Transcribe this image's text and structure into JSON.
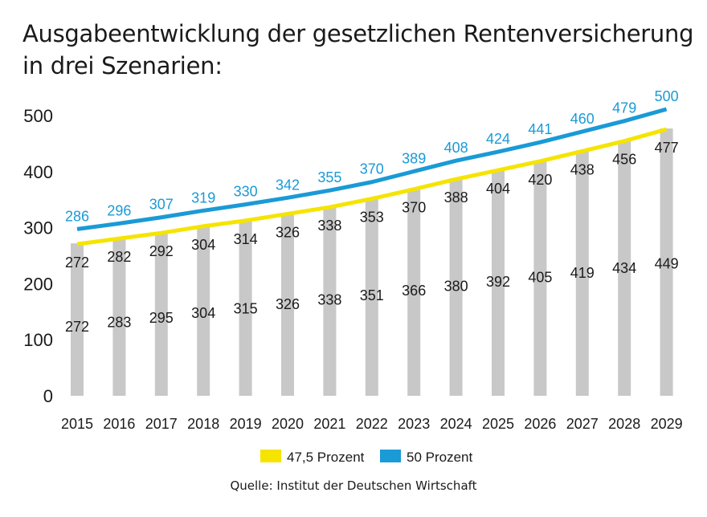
{
  "title_line1": "Ausgabeentwicklung der gesetzlichen Rentenversicherung",
  "title_line2": "in drei Szenarien:",
  "source": "Quelle: Institut der Deutschen Wirtschaft",
  "chart_data": {
    "type": "bar",
    "categories": [
      "2015",
      "2016",
      "2017",
      "2018",
      "2019",
      "2020",
      "2021",
      "2022",
      "2023",
      "2024",
      "2025",
      "2026",
      "2027",
      "2028",
      "2029"
    ],
    "ylim": [
      0,
      500
    ],
    "yticks": [
      0,
      100,
      200,
      300,
      400,
      500
    ],
    "grid": false,
    "legend_position": "bottom",
    "bars": {
      "values": [
        272,
        283,
        295,
        304,
        315,
        326,
        338,
        351,
        366,
        380,
        392,
        405,
        419,
        434,
        449
      ],
      "color": "#c8c8c8",
      "top_labels": [
        272,
        282,
        292,
        304,
        314,
        326,
        338,
        353,
        370,
        388,
        404,
        420,
        438,
        456,
        477
      ]
    },
    "series": [
      {
        "name": "47,5 Prozent",
        "color": "#f5e400",
        "values": [
          272,
          282,
          292,
          304,
          314,
          326,
          338,
          353,
          370,
          388,
          404,
          420,
          438,
          456,
          477
        ]
      },
      {
        "name": "50 Prozent",
        "color": "#1a9ad6",
        "values": [
          286,
          296,
          307,
          319,
          330,
          342,
          355,
          370,
          389,
          408,
          424,
          441,
          460,
          479,
          500
        ]
      }
    ]
  }
}
